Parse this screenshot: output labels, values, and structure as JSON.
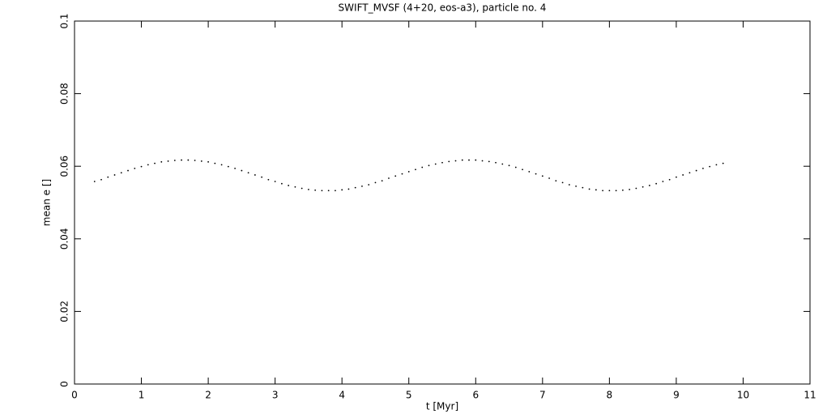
{
  "chart_data": {
    "type": "scatter",
    "title": "SWIFT_MVSF (4+20, eos-a3), particle no. 4",
    "xlabel": "t [Myr]",
    "ylabel": "mean e []",
    "x": [
      0.3,
      0.4,
      0.5,
      0.6,
      0.7,
      0.8,
      0.9,
      1.0,
      1.1,
      1.2,
      1.3,
      1.4,
      1.5,
      1.6,
      1.7,
      1.8,
      1.9,
      2.0,
      2.1,
      2.2,
      2.3,
      2.4,
      2.5,
      2.6,
      2.7,
      2.8,
      2.9,
      3.0,
      3.1,
      3.2,
      3.3,
      3.4,
      3.5,
      3.6,
      3.7,
      3.8,
      3.9,
      4.0,
      4.1,
      4.2,
      4.3,
      4.4,
      4.5,
      4.6,
      4.7,
      4.8,
      4.9,
      5.0,
      5.1,
      5.2,
      5.3,
      5.4,
      5.5,
      5.6,
      5.7,
      5.8,
      5.9,
      6.0,
      6.1,
      6.2,
      6.3,
      6.4,
      6.5,
      6.6,
      6.7,
      6.8,
      6.9,
      7.0,
      7.1,
      7.2,
      7.3,
      7.4,
      7.5,
      7.6,
      7.7,
      7.8,
      7.9,
      8.0,
      8.1,
      8.2,
      8.3,
      8.4,
      8.5,
      8.6,
      8.7,
      8.8,
      8.9,
      9.0,
      9.1,
      9.2,
      9.3,
      9.4,
      9.5,
      9.6,
      9.7
    ],
    "values": [
      0.0558,
      0.0563,
      0.057,
      0.0576,
      0.0582,
      0.0588,
      0.0594,
      0.0599,
      0.0604,
      0.0608,
      0.0612,
      0.0614,
      0.0616,
      0.0617,
      0.0617,
      0.0616,
      0.0614,
      0.0612,
      0.0608,
      0.0604,
      0.0599,
      0.0594,
      0.0588,
      0.0582,
      0.0576,
      0.057,
      0.0563,
      0.0558,
      0.0552,
      0.0547,
      0.0543,
      0.0539,
      0.0536,
      0.0534,
      0.0533,
      0.0533,
      0.0533,
      0.0535,
      0.0537,
      0.0541,
      0.0545,
      0.0549,
      0.0555,
      0.056,
      0.0567,
      0.0573,
      0.0579,
      0.0585,
      0.0591,
      0.0597,
      0.0602,
      0.0606,
      0.061,
      0.0613,
      0.0615,
      0.0617,
      0.0617,
      0.0617,
      0.0615,
      0.0613,
      0.061,
      0.0606,
      0.0602,
      0.0597,
      0.0591,
      0.0585,
      0.0579,
      0.0573,
      0.0567,
      0.056,
      0.0555,
      0.0549,
      0.0545,
      0.0541,
      0.0537,
      0.0535,
      0.0533,
      0.0533,
      0.0533,
      0.0534,
      0.0536,
      0.0539,
      0.0543,
      0.0547,
      0.0552,
      0.0558,
      0.0563,
      0.057,
      0.0576,
      0.0582,
      0.0588,
      0.0594,
      0.0599,
      0.0604,
      0.0608
    ],
    "color": "#000000",
    "xlim": [
      0,
      11
    ],
    "xticks": [
      0,
      1,
      2,
      3,
      4,
      5,
      6,
      7,
      8,
      9,
      10,
      11
    ],
    "ylim": [
      0,
      0.1
    ],
    "yticks": [
      0,
      0.02,
      0.04,
      0.06,
      0.08,
      0.1
    ]
  }
}
